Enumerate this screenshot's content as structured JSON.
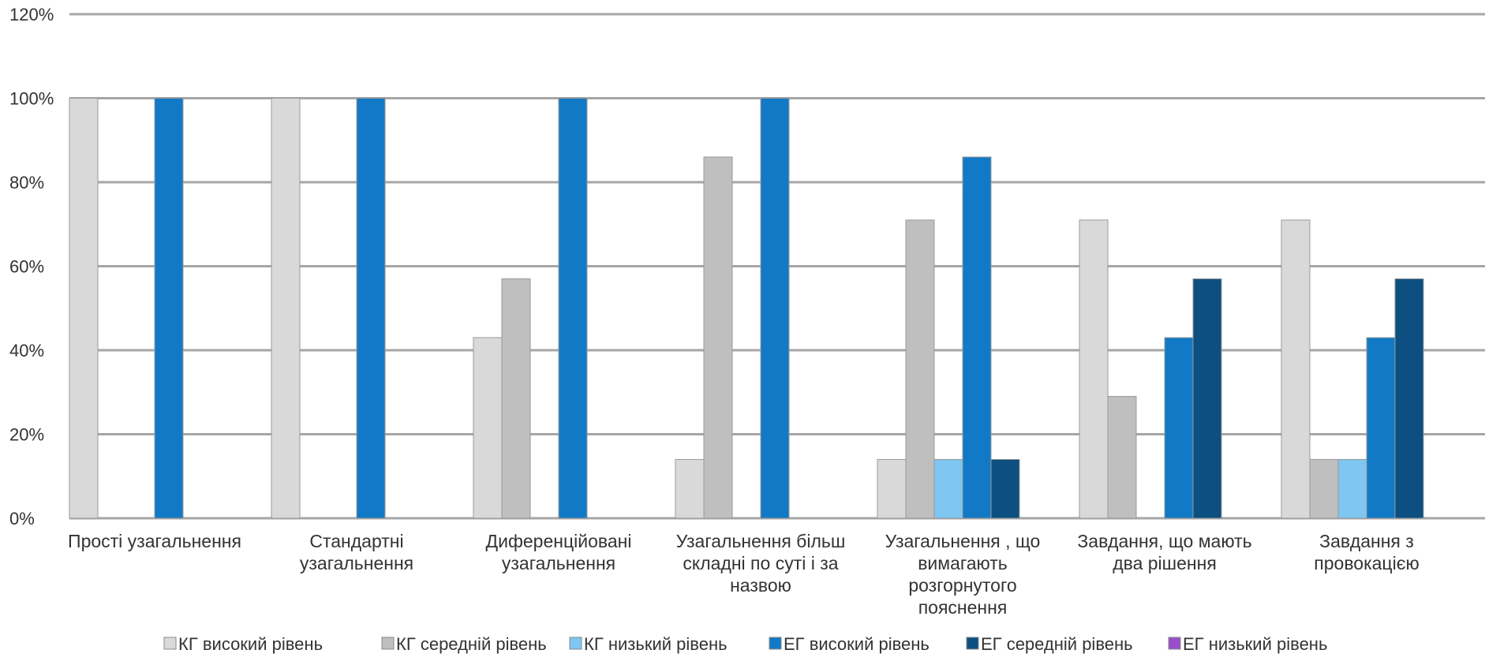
{
  "chart_data": {
    "type": "bar",
    "title": "",
    "xlabel": "",
    "ylabel": "",
    "ylim": [
      0,
      120
    ],
    "y_ticks": [
      0,
      20,
      40,
      60,
      80,
      100,
      120
    ],
    "y_tick_labels": [
      "0%",
      "20%",
      "40%",
      "60%",
      "80%",
      "100%",
      "120%"
    ],
    "grid": true,
    "legend_position": "bottom",
    "categories": [
      [
        "Прості узагальнення"
      ],
      [
        "Стандартні",
        "узагальнення"
      ],
      [
        "Диференційовані",
        "узагальнення"
      ],
      [
        "Узагальнення більш",
        "складні по суті і за",
        "назвою"
      ],
      [
        "Узагальнення , що",
        "вимагають",
        "розгорнутого",
        "пояснення"
      ],
      [
        "Завдання, що мають",
        "два рішення"
      ],
      [
        "Завдання з",
        "провокацією"
      ]
    ],
    "series": [
      {
        "name": "КГ високий рівень",
        "color": "#d9d9d9",
        "values": [
          100,
          100,
          43,
          14,
          14,
          71,
          71
        ]
      },
      {
        "name": "КГ середній рівень",
        "color": "#bfbfbf",
        "values": [
          0,
          0,
          57,
          86,
          71,
          29,
          14
        ]
      },
      {
        "name": "КГ низький рівень",
        "color": "#7fc6f2",
        "values": [
          0,
          0,
          0,
          0,
          14,
          0,
          14
        ]
      },
      {
        "name": "ЕГ високий рівень",
        "color": "#1279c6",
        "values": [
          100,
          100,
          100,
          100,
          86,
          43,
          43
        ]
      },
      {
        "name": "ЕГ середній рівень",
        "color": "#0c4f80",
        "values": [
          0,
          0,
          0,
          0,
          14,
          57,
          57
        ]
      },
      {
        "name": "ЕГ низький рівень",
        "color": "#9b4dca",
        "values": [
          0,
          0,
          0,
          0,
          0,
          0,
          0
        ]
      }
    ]
  }
}
